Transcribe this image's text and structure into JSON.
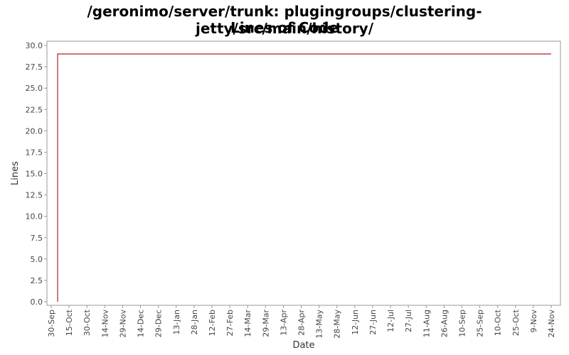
{
  "chart_data": {
    "type": "line",
    "title": "/geronimo/server/trunk: plugingroups/clustering-jetty/src/main/history/",
    "subtitle": "Lines of Code",
    "xlabel": "Date",
    "ylabel": "Lines",
    "ylim": [
      0,
      30
    ],
    "y_ticks": [
      "0.0",
      "2.5",
      "5.0",
      "7.5",
      "10.0",
      "12.5",
      "15.0",
      "17.5",
      "20.0",
      "22.5",
      "25.0",
      "27.5",
      "30.0"
    ],
    "x_ticks": [
      "30-Sep",
      "15-Oct",
      "30-Oct",
      "14-Nov",
      "29-Nov",
      "14-Dec",
      "29-Dec",
      "13-Jan",
      "28-Jan",
      "12-Feb",
      "27-Feb",
      "14-Mar",
      "29-Mar",
      "13-Apr",
      "28-Apr",
      "13-May",
      "28-May",
      "12-Jun",
      "27-Jun",
      "12-Jul",
      "27-Jul",
      "11-Aug",
      "26-Aug",
      "10-Sep",
      "25-Sep",
      "10-Oct",
      "25-Oct",
      "9-Nov",
      "24-Nov"
    ],
    "grid": false,
    "legend": "none",
    "series": [
      {
        "color": "#b22222",
        "x": [
          "30-Sep",
          "30-Sep",
          "24-Nov"
        ],
        "y": [
          0,
          29,
          29
        ]
      }
    ]
  }
}
